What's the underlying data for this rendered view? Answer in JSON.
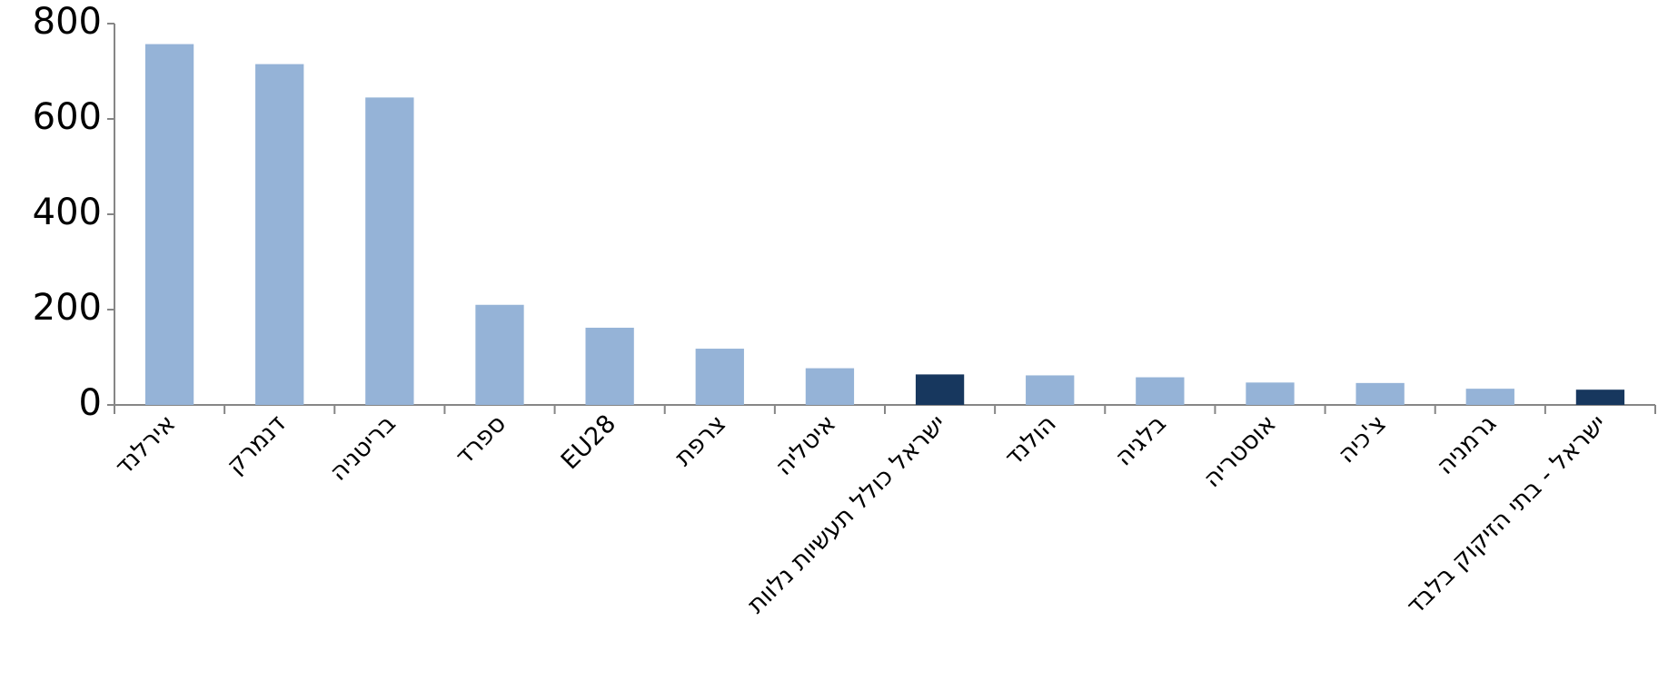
{
  "chart_data": {
    "type": "bar",
    "categories": [
      "אירלנד",
      "דנמרק",
      "בריטניה",
      "ספרד",
      "EU28",
      "צרפת",
      "איטליה",
      "ישראל כולל תעשיות נלוות",
      "הולנד",
      "בלגיה",
      "אוסטריה",
      "צ'כיה",
      "גרמניה",
      "ישראל - בתי הזיקוק בלבד"
    ],
    "values": [
      757,
      715,
      645,
      210,
      162,
      118,
      77,
      64,
      62,
      58,
      47,
      46,
      34,
      32
    ],
    "colors": [
      "#95b3d7",
      "#95b3d7",
      "#95b3d7",
      "#95b3d7",
      "#95b3d7",
      "#95b3d7",
      "#95b3d7",
      "#17375e",
      "#95b3d7",
      "#95b3d7",
      "#95b3d7",
      "#95b3d7",
      "#95b3d7",
      "#17375e"
    ],
    "ylim": [
      0,
      800
    ],
    "yticks": [
      0,
      200,
      400,
      600,
      800
    ],
    "grid": false
  }
}
